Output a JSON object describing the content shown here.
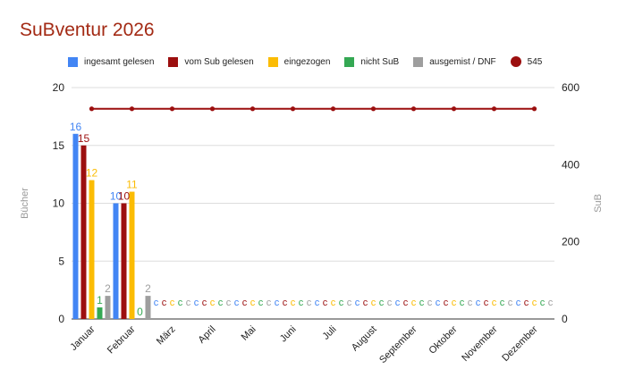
{
  "chart_data": {
    "type": "bar",
    "title": "SuBventur 2026",
    "ylabel": "Bücher",
    "y2label": "SuB",
    "ylim": [
      0,
      20
    ],
    "y2lim": [
      0,
      600
    ],
    "yticks": [
      "0",
      "5",
      "10",
      "15",
      "20"
    ],
    "y2ticks": [
      "0",
      "200",
      "400",
      "600"
    ],
    "legend_position": "top",
    "categories": [
      "Januar",
      "Februar",
      "März",
      "April",
      "Mai",
      "Juni",
      "Juli",
      "August",
      "September",
      "Oktober",
      "November",
      "Dezember"
    ],
    "series": [
      {
        "name": "ingesamt gelesen",
        "color": "#4285f4",
        "values": [
          16,
          10,
          null,
          null,
          null,
          null,
          null,
          null,
          null,
          null,
          null,
          null
        ]
      },
      {
        "name": "vom Sub gelesen",
        "color": "#9c0f0f",
        "values": [
          15,
          10,
          null,
          null,
          null,
          null,
          null,
          null,
          null,
          null,
          null,
          null
        ]
      },
      {
        "name": "eingezogen",
        "color": "#fbbc04",
        "values": [
          12,
          11,
          null,
          null,
          null,
          null,
          null,
          null,
          null,
          null,
          null,
          null
        ]
      },
      {
        "name": "nicht SuB",
        "color": "#34a853",
        "values": [
          1,
          0,
          null,
          null,
          null,
          null,
          null,
          null,
          null,
          null,
          null,
          null
        ]
      },
      {
        "name": "ausgemist / DNF",
        "color": "#9e9e9e",
        "values": [
          2,
          2,
          null,
          null,
          null,
          null,
          null,
          null,
          null,
          null,
          null,
          null
        ]
      }
    ],
    "line_series": {
      "name": "545",
      "color": "#9c0f0f",
      "axis": "right",
      "values": [
        545,
        545,
        545,
        545,
        545,
        545,
        545,
        545,
        545,
        545,
        545,
        545
      ]
    },
    "empty_marker": "c"
  }
}
